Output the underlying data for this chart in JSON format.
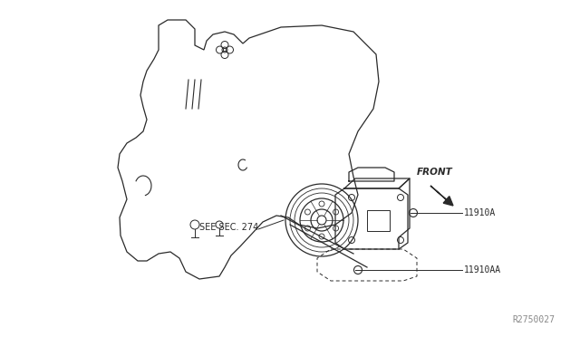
{
  "bg_color": "#ffffff",
  "line_color": "#2a2a2a",
  "text_color": "#2a2a2a",
  "part_label_1": "11910A",
  "part_label_2": "11910AA",
  "see_sec_label": "SEE SEC. 274",
  "front_label": "FRONT",
  "ref_label": "R2750027",
  "fig_width": 6.4,
  "fig_height": 3.72,
  "dpi": 100
}
